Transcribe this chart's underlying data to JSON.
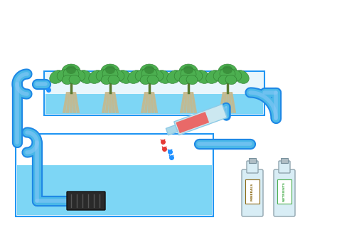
{
  "bg_color": "#ffffff",
  "channel_color": "#5bc8f5",
  "channel_border": "#2196f3",
  "channel_fill": "#e8f6fc",
  "water_color": "#7dd6f5",
  "pipe_color": "#4ab8e8",
  "pipe_dark": "#1e88e5",
  "pipe_light": "#90caf9",
  "plant_green_dark": "#2d7a2d",
  "plant_green_mid": "#3d8b3d",
  "plant_green_light": "#4caf50",
  "root_color": "#c8b88a",
  "pump_color": "#2a2a2a",
  "pump_grille": "#555555",
  "drop_blue": "#1e90ff",
  "drop_red": "#e53935",
  "bottle_body": "#d8edf5",
  "bottle_border": "#90a4ae",
  "bottle1_label": "#8B6914",
  "bottle2_label": "#4caf50",
  "reservoir_fill": "#f0faff",
  "res_water": "#7dd6f5",
  "fig_width": 4.74,
  "fig_height": 3.16
}
